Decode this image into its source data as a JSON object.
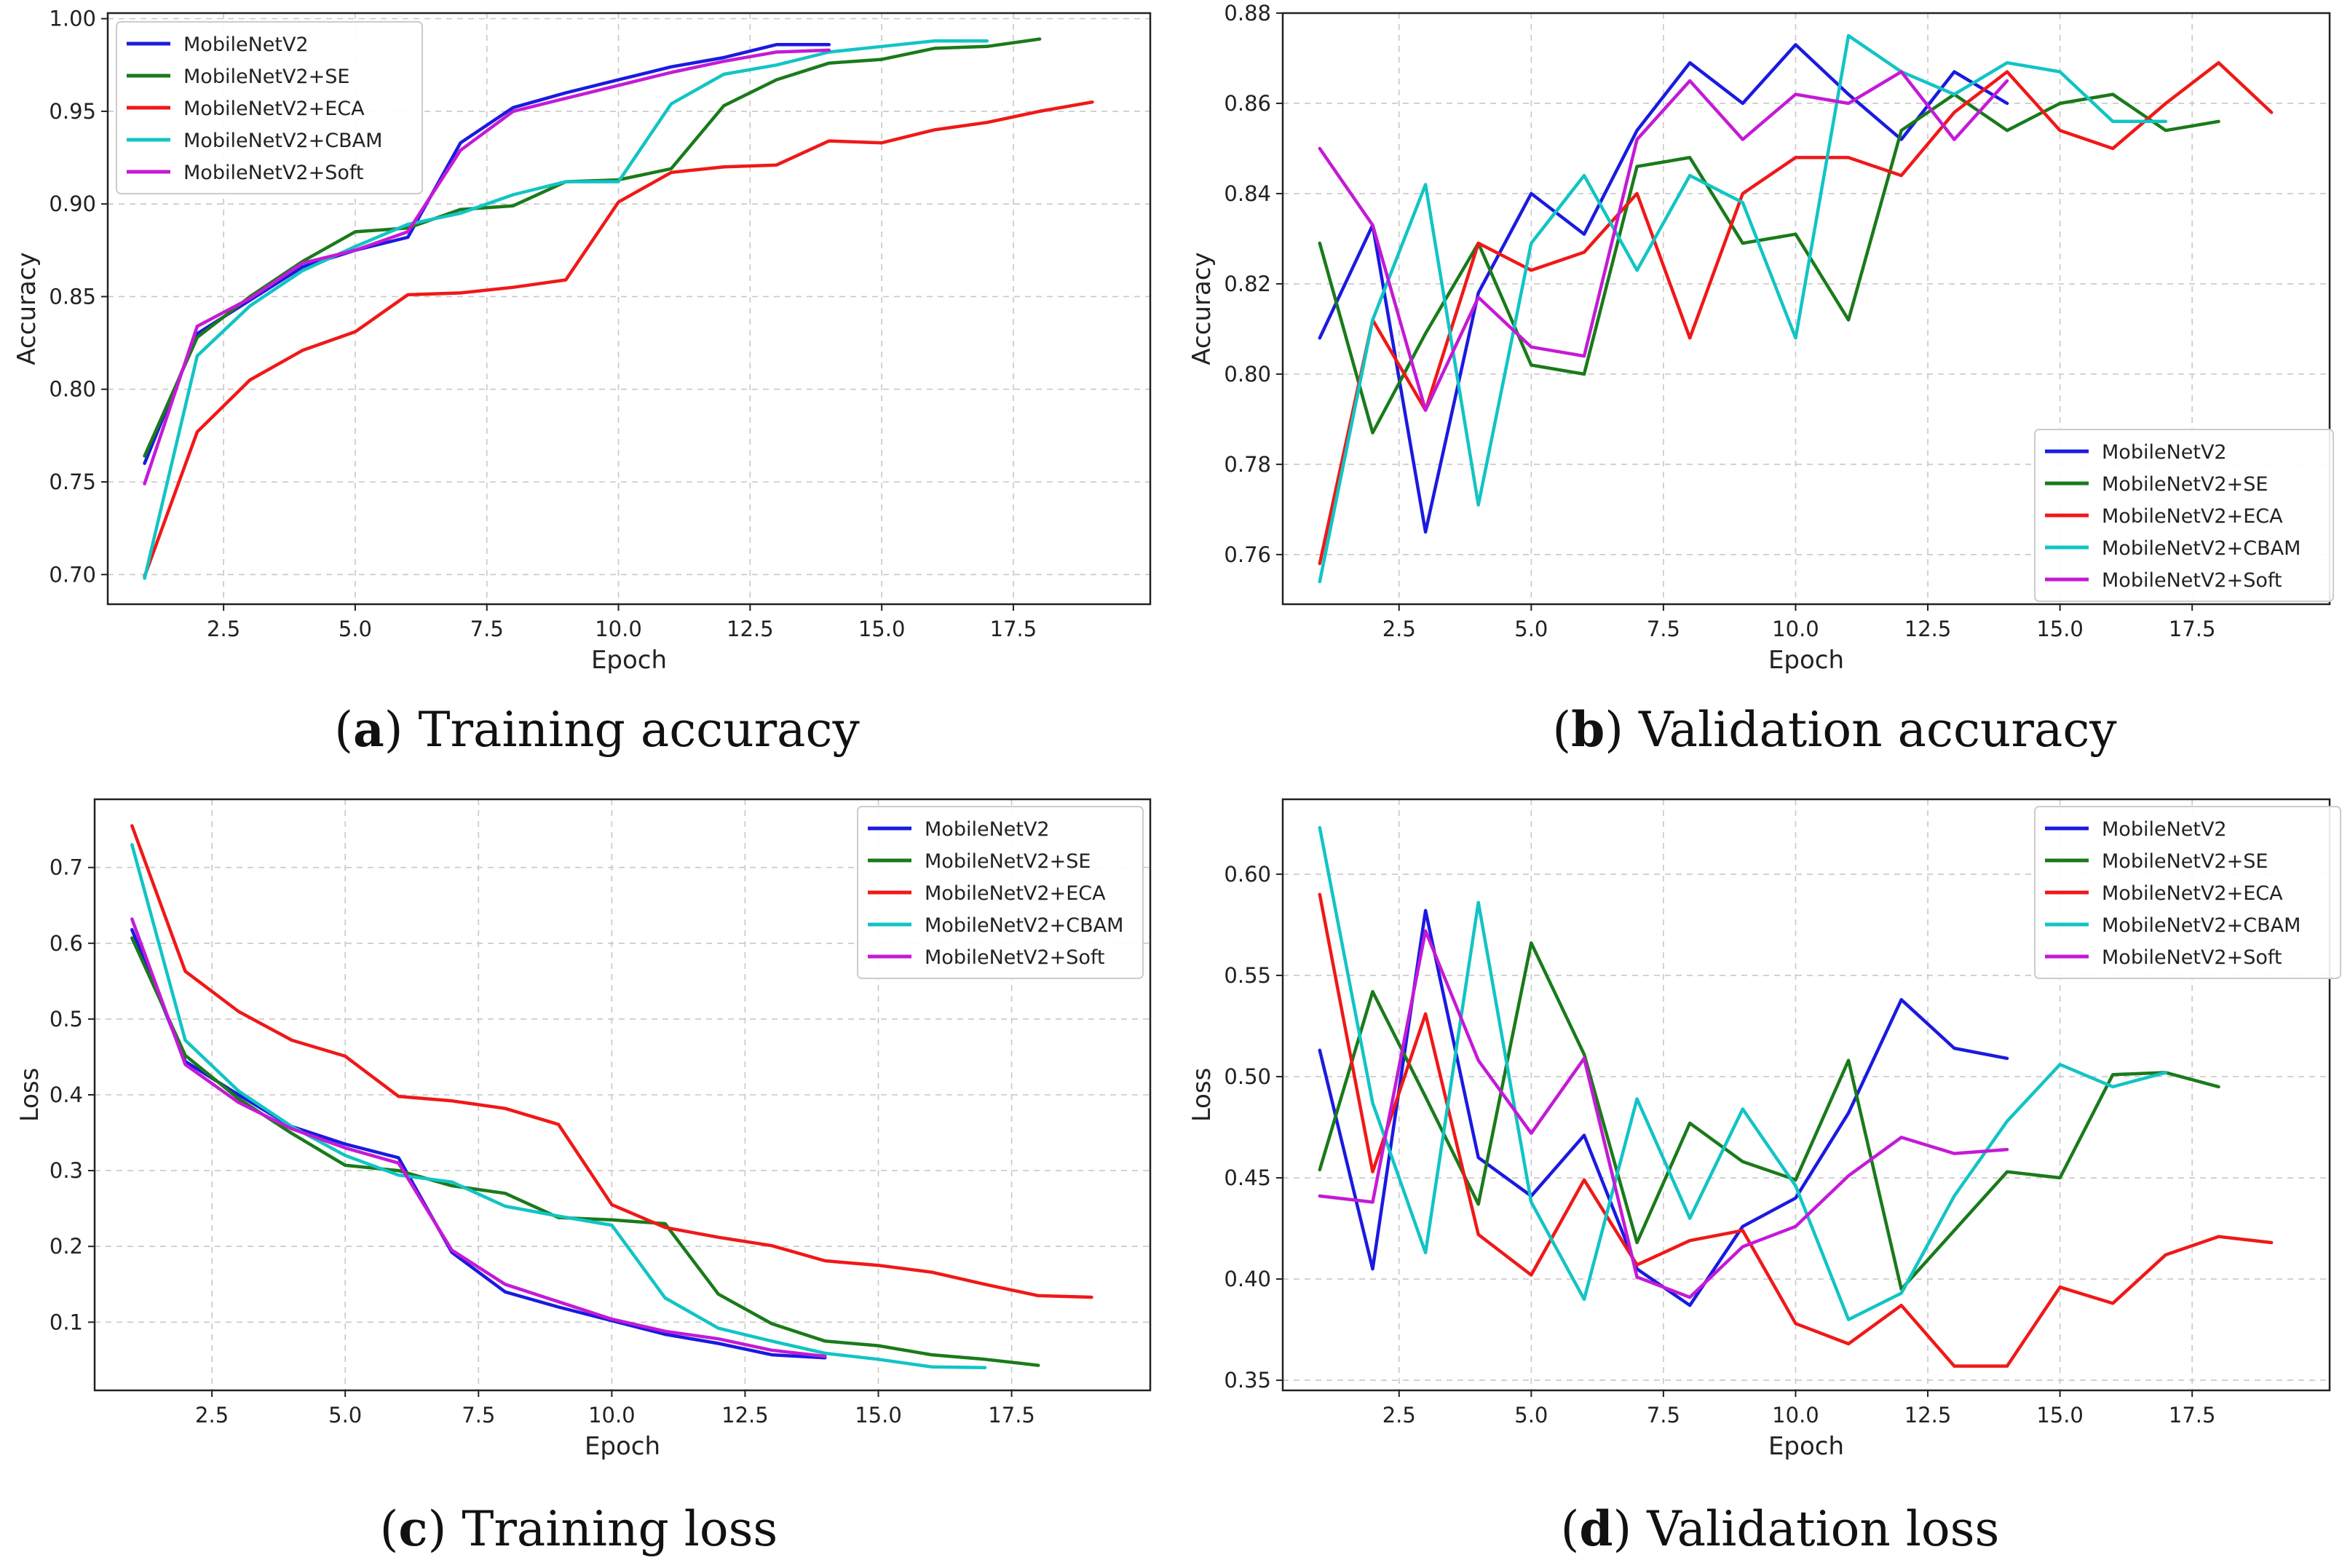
{
  "colors": {
    "MobileNetV2": "#1a1ae0",
    "MobileNetV2+SE": "#1a7a1a",
    "MobileNetV2+ECA": "#f01818",
    "MobileNetV2+CBAM": "#12c4c4",
    "MobileNetV2+Soft": "#c41ad6"
  },
  "chart_data": [
    {
      "id": "a",
      "type": "line",
      "caption": {
        "letter": "a",
        "text": "Training accuracy"
      },
      "xlabel": "Epoch",
      "ylabel": "Accuracy",
      "xlim": [
        0.3,
        20.1
      ],
      "ylim": [
        0.684,
        1.003
      ],
      "xticks": [
        "2.5",
        "5.0",
        "7.5",
        "10.0",
        "12.5",
        "15.0",
        "17.5"
      ],
      "yticks": [
        "0.70",
        "0.75",
        "0.80",
        "0.85",
        "0.90",
        "0.95",
        "1.00"
      ],
      "grid": true,
      "legend": "top-left",
      "series": [
        {
          "name": "MobileNetV2",
          "x": [
            1,
            2,
            3,
            4,
            5,
            6,
            7,
            8,
            9,
            10,
            11,
            12,
            13,
            14
          ],
          "y": [
            0.76,
            0.83,
            0.848,
            0.866,
            0.875,
            0.882,
            0.933,
            0.952,
            0.96,
            0.967,
            0.974,
            0.979,
            0.986,
            0.986
          ]
        },
        {
          "name": "MobileNetV2+SE",
          "x": [
            1,
            2,
            3,
            4,
            5,
            6,
            7,
            8,
            9,
            10,
            11,
            12,
            13,
            14,
            15,
            16,
            17,
            18
          ],
          "y": [
            0.764,
            0.828,
            0.85,
            0.869,
            0.885,
            0.887,
            0.897,
            0.899,
            0.912,
            0.913,
            0.919,
            0.953,
            0.967,
            0.976,
            0.978,
            0.984,
            0.985,
            0.989
          ]
        },
        {
          "name": "MobileNetV2+ECA",
          "x": [
            1,
            2,
            3,
            4,
            5,
            6,
            7,
            8,
            9,
            10,
            11,
            12,
            13,
            14,
            15,
            16,
            17,
            18,
            19
          ],
          "y": [
            0.699,
            0.777,
            0.805,
            0.821,
            0.831,
            0.851,
            0.852,
            0.855,
            0.859,
            0.901,
            0.917,
            0.92,
            0.921,
            0.934,
            0.933,
            0.94,
            0.944,
            0.95,
            0.955
          ]
        },
        {
          "name": "MobileNetV2+CBAM",
          "x": [
            1,
            2,
            3,
            4,
            5,
            6,
            7,
            8,
            9,
            10,
            11,
            12,
            13,
            14,
            15,
            16,
            17
          ],
          "y": [
            0.698,
            0.818,
            0.845,
            0.864,
            0.877,
            0.889,
            0.895,
            0.905,
            0.912,
            0.912,
            0.954,
            0.97,
            0.975,
            0.982,
            0.985,
            0.988,
            0.988
          ]
        },
        {
          "name": "MobileNetV2+Soft",
          "x": [
            1,
            2,
            3,
            4,
            5,
            6,
            7,
            8,
            9,
            10,
            11,
            12,
            13,
            14
          ],
          "y": [
            0.749,
            0.834,
            0.849,
            0.868,
            0.875,
            0.885,
            0.929,
            0.95,
            0.957,
            0.964,
            0.971,
            0.977,
            0.982,
            0.983
          ]
        }
      ]
    },
    {
      "id": "b",
      "type": "line",
      "caption": {
        "letter": "b",
        "text": "Validation accuracy"
      },
      "xlabel": "Epoch",
      "ylabel": "Accuracy",
      "xlim": [
        0.3,
        20.1
      ],
      "ylim": [
        0.749,
        0.88
      ],
      "xticks": [
        "2.5",
        "5.0",
        "7.5",
        "10.0",
        "12.5",
        "15.0",
        "17.5"
      ],
      "yticks": [
        "0.76",
        "0.78",
        "0.80",
        "0.82",
        "0.84",
        "0.86",
        "0.88"
      ],
      "grid": true,
      "legend": "bottom-right",
      "series": [
        {
          "name": "MobileNetV2",
          "x": [
            1,
            2,
            3,
            4,
            5,
            6,
            7,
            8,
            9,
            10,
            11,
            12,
            13,
            14
          ],
          "y": [
            0.808,
            0.833,
            0.765,
            0.818,
            0.84,
            0.831,
            0.854,
            0.869,
            0.86,
            0.873,
            0.862,
            0.852,
            0.867,
            0.86
          ]
        },
        {
          "name": "MobileNetV2+SE",
          "x": [
            1,
            2,
            3,
            4,
            5,
            6,
            7,
            8,
            9,
            10,
            11,
            12,
            13,
            14,
            15,
            16,
            17,
            18
          ],
          "y": [
            0.829,
            0.787,
            0.809,
            0.829,
            0.802,
            0.8,
            0.846,
            0.848,
            0.829,
            0.831,
            0.812,
            0.854,
            0.862,
            0.854,
            0.86,
            0.862,
            0.854,
            0.856
          ]
        },
        {
          "name": "MobileNetV2+ECA",
          "x": [
            1,
            2,
            3,
            4,
            5,
            6,
            7,
            8,
            9,
            10,
            11,
            12,
            13,
            14,
            15,
            16,
            17,
            18,
            19
          ],
          "y": [
            0.758,
            0.812,
            0.792,
            0.829,
            0.823,
            0.827,
            0.84,
            0.808,
            0.84,
            0.848,
            0.848,
            0.844,
            0.858,
            0.867,
            0.854,
            0.85,
            0.86,
            0.869,
            0.858
          ]
        },
        {
          "name": "MobileNetV2+CBAM",
          "x": [
            1,
            2,
            3,
            4,
            5,
            6,
            7,
            8,
            9,
            10,
            11,
            12,
            13,
            14,
            15,
            16,
            17
          ],
          "y": [
            0.754,
            0.812,
            0.842,
            0.771,
            0.829,
            0.844,
            0.823,
            0.844,
            0.838,
            0.808,
            0.875,
            0.867,
            0.862,
            0.869,
            0.867,
            0.856,
            0.856
          ]
        },
        {
          "name": "MobileNetV2+Soft",
          "x": [
            1,
            2,
            3,
            4,
            5,
            6,
            7,
            8,
            9,
            10,
            11,
            12,
            13,
            14
          ],
          "y": [
            0.85,
            0.833,
            0.792,
            0.817,
            0.806,
            0.804,
            0.852,
            0.865,
            0.852,
            0.862,
            0.86,
            0.867,
            0.852,
            0.865
          ]
        }
      ]
    },
    {
      "id": "c",
      "type": "line",
      "caption": {
        "letter": "c",
        "text": "Training loss"
      },
      "xlabel": "Epoch",
      "ylabel": "Loss",
      "xlim": [
        0.3,
        20.1
      ],
      "ylim": [
        0.01,
        0.79
      ],
      "xticks": [
        "2.5",
        "5.0",
        "7.5",
        "10.0",
        "12.5",
        "15.0",
        "17.5"
      ],
      "yticks": [
        "0.1",
        "0.2",
        "0.3",
        "0.4",
        "0.5",
        "0.6",
        "0.7"
      ],
      "grid": true,
      "legend": "top-right",
      "series": [
        {
          "name": "MobileNetV2",
          "x": [
            1,
            2,
            3,
            4,
            5,
            6,
            7,
            8,
            9,
            10,
            11,
            12,
            13,
            14
          ],
          "y": [
            0.618,
            0.444,
            0.4,
            0.358,
            0.335,
            0.317,
            0.192,
            0.14,
            0.12,
            0.102,
            0.084,
            0.072,
            0.057,
            0.053
          ]
        },
        {
          "name": "MobileNetV2+SE",
          "x": [
            1,
            2,
            3,
            4,
            5,
            6,
            7,
            8,
            9,
            10,
            11,
            12,
            13,
            14,
            15,
            16,
            17,
            18
          ],
          "y": [
            0.607,
            0.452,
            0.395,
            0.349,
            0.307,
            0.3,
            0.28,
            0.27,
            0.238,
            0.235,
            0.23,
            0.137,
            0.098,
            0.075,
            0.069,
            0.057,
            0.051,
            0.043
          ]
        },
        {
          "name": "MobileNetV2+ECA",
          "x": [
            1,
            2,
            3,
            4,
            5,
            6,
            7,
            8,
            9,
            10,
            11,
            12,
            13,
            14,
            15,
            16,
            17,
            18,
            19
          ],
          "y": [
            0.755,
            0.563,
            0.51,
            0.472,
            0.451,
            0.398,
            0.392,
            0.382,
            0.361,
            0.255,
            0.225,
            0.212,
            0.201,
            0.181,
            0.175,
            0.166,
            0.15,
            0.135,
            0.133
          ]
        },
        {
          "name": "MobileNetV2+CBAM",
          "x": [
            1,
            2,
            3,
            4,
            5,
            6,
            7,
            8,
            9,
            10,
            11,
            12,
            13,
            14,
            15,
            16,
            17
          ],
          "y": [
            0.73,
            0.472,
            0.405,
            0.358,
            0.32,
            0.294,
            0.285,
            0.253,
            0.24,
            0.228,
            0.132,
            0.092,
            0.075,
            0.059,
            0.051,
            0.041,
            0.04
          ]
        },
        {
          "name": "MobileNetV2+Soft",
          "x": [
            1,
            2,
            3,
            4,
            5,
            6,
            7,
            8,
            9,
            10,
            11,
            12,
            13,
            14
          ],
          "y": [
            0.632,
            0.44,
            0.39,
            0.355,
            0.33,
            0.31,
            0.195,
            0.15,
            0.127,
            0.104,
            0.088,
            0.078,
            0.063,
            0.055
          ]
        }
      ]
    },
    {
      "id": "d",
      "type": "line",
      "caption": {
        "letter": "d",
        "text": "Validation loss"
      },
      "xlabel": "Epoch",
      "ylabel": "Loss",
      "xlim": [
        0.3,
        20.1
      ],
      "ylim": [
        0.345,
        0.637
      ],
      "xticks": [
        "2.5",
        "5.0",
        "7.5",
        "10.0",
        "12.5",
        "15.0",
        "17.5"
      ],
      "yticks": [
        "0.35",
        "0.40",
        "0.45",
        "0.50",
        "0.55",
        "0.60"
      ],
      "grid": true,
      "legend": "top-right",
      "series": [
        {
          "name": "MobileNetV2",
          "x": [
            1,
            2,
            3,
            4,
            5,
            6,
            7,
            8,
            9,
            10,
            11,
            12,
            13,
            14
          ],
          "y": [
            0.513,
            0.405,
            0.582,
            0.46,
            0.441,
            0.471,
            0.405,
            0.387,
            0.426,
            0.44,
            0.482,
            0.538,
            0.514,
            0.509
          ]
        },
        {
          "name": "MobileNetV2+SE",
          "x": [
            1,
            2,
            3,
            4,
            5,
            6,
            7,
            8,
            9,
            10,
            11,
            12,
            13,
            14,
            15,
            16,
            17,
            18
          ],
          "y": [
            0.454,
            0.542,
            0.49,
            0.437,
            0.566,
            0.511,
            0.418,
            0.477,
            0.458,
            0.449,
            0.508,
            0.395,
            0.424,
            0.453,
            0.45,
            0.501,
            0.502,
            0.495
          ]
        },
        {
          "name": "MobileNetV2+ECA",
          "x": [
            1,
            2,
            3,
            4,
            5,
            6,
            7,
            8,
            9,
            10,
            11,
            12,
            13,
            14,
            15,
            16,
            17,
            18,
            19
          ],
          "y": [
            0.59,
            0.453,
            0.531,
            0.422,
            0.402,
            0.449,
            0.407,
            0.419,
            0.424,
            0.378,
            0.368,
            0.387,
            0.357,
            0.357,
            0.396,
            0.388,
            0.412,
            0.421,
            0.418
          ]
        },
        {
          "name": "MobileNetV2+CBAM",
          "x": [
            1,
            2,
            3,
            4,
            5,
            6,
            7,
            8,
            9,
            10,
            11,
            12,
            13,
            14,
            15,
            16,
            17
          ],
          "y": [
            0.623,
            0.487,
            0.413,
            0.586,
            0.438,
            0.39,
            0.489,
            0.43,
            0.484,
            0.446,
            0.38,
            0.393,
            0.441,
            0.478,
            0.506,
            0.495,
            0.502
          ]
        },
        {
          "name": "MobileNetV2+Soft",
          "x": [
            1,
            2,
            3,
            4,
            5,
            6,
            7,
            8,
            9,
            10,
            11,
            12,
            13,
            14
          ],
          "y": [
            0.441,
            0.438,
            0.572,
            0.508,
            0.472,
            0.509,
            0.401,
            0.391,
            0.416,
            0.426,
            0.451,
            0.47,
            0.462,
            0.464
          ]
        }
      ]
    }
  ]
}
